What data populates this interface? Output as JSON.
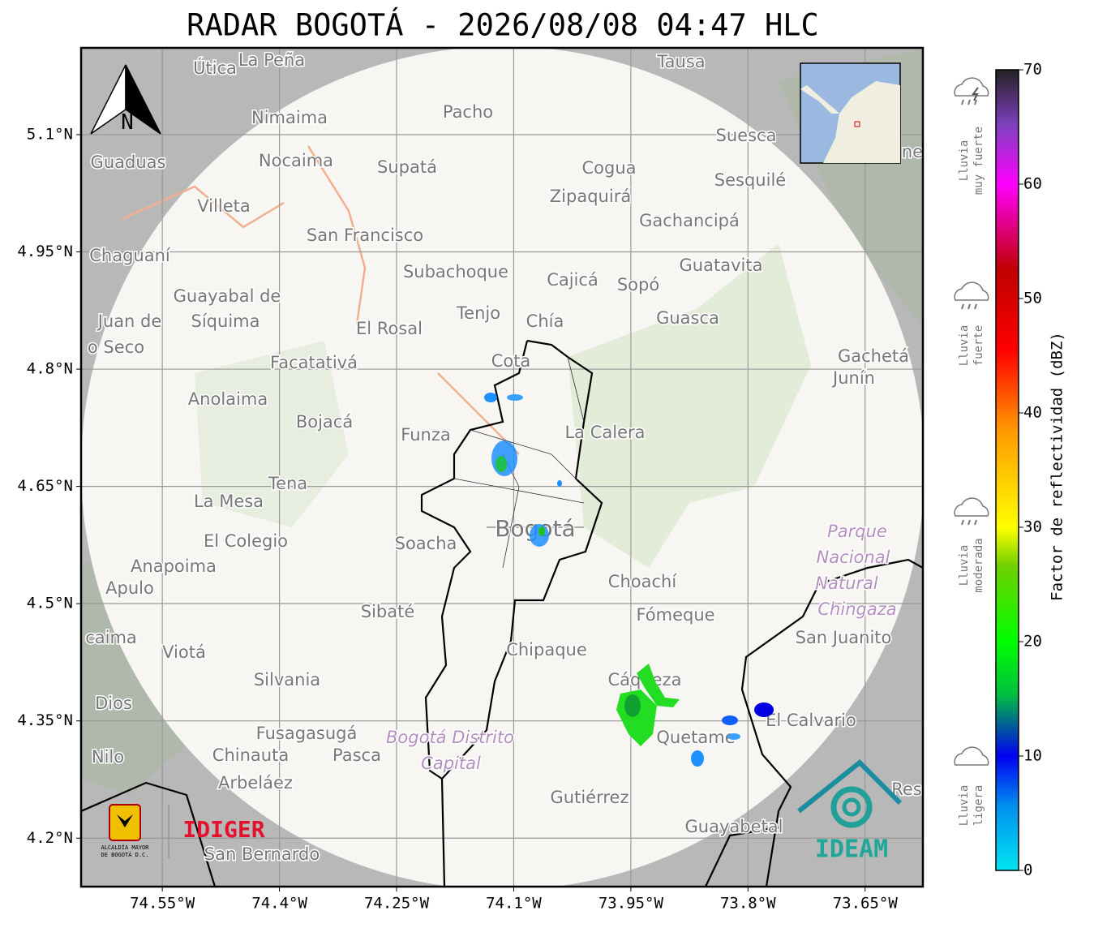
{
  "title": "RADAR BOGOTÁ - 2026/08/08 04:47 HLC",
  "map": {
    "lon_lim": [
      -74.654,
      -73.576
    ],
    "lat_lim": [
      4.138,
      5.211
    ],
    "lat_ticks": [
      {
        "value": 5.1,
        "label": "5.1°N"
      },
      {
        "value": 4.95,
        "label": "4.95°N"
      },
      {
        "value": 4.8,
        "label": "4.8°N"
      },
      {
        "value": 4.65,
        "label": "4.65°N"
      },
      {
        "value": 4.5,
        "label": "4.5°N"
      },
      {
        "value": 4.35,
        "label": "4.35°N"
      },
      {
        "value": 4.2,
        "label": "4.2°N"
      }
    ],
    "lon_ticks": [
      {
        "value": -74.55,
        "label": "74.55°W"
      },
      {
        "value": -74.4,
        "label": "74.4°W"
      },
      {
        "value": -74.25,
        "label": "74.25°W"
      },
      {
        "value": -74.1,
        "label": "74.1°W"
      },
      {
        "value": -73.95,
        "label": "73.95°W"
      },
      {
        "value": -73.8,
        "label": "73.8°W"
      },
      {
        "value": -73.65,
        "label": "73.65°W"
      }
    ],
    "north": "N",
    "places": [
      "Útica",
      "La Peña",
      "Tausa",
      "Pacho",
      "Nimaima",
      "Guaduas",
      "Nocaima",
      "Supatá",
      "Cogua",
      "Suesca",
      "Sesquilé",
      "Zipaquirá",
      "Villeta",
      "Gachancipá",
      "San Francisco",
      "Chaguaní",
      "Guatavita",
      "Subachoque",
      "Cajicá",
      "Sopó",
      "Guayabal de",
      "Síquima",
      "Juan de",
      "Tenjo",
      "Chía",
      "Guasca",
      "El Rosal",
      "o Seco",
      "Facatativá",
      "Cota",
      "Gachetá",
      "Junín",
      "Anolaima",
      "Bojacá",
      "Funza",
      "La Calera",
      "Tena",
      "La Mesa",
      "Bogotá",
      "Parque",
      "Nacional",
      "Natural",
      "Chingaza",
      "El Colegio",
      "Soacha",
      "Anapoima",
      "Apulo",
      "Choachí",
      "Sibaté",
      "Fómeque",
      "San Juanito",
      "caima",
      "Viotá",
      "Chipaque",
      "Silvania",
      "Cáqueza",
      "Dios",
      "El Calvario",
      "Fusagasugá",
      "Quetame",
      "Bogotá Distrito",
      "Capital",
      "Nilo",
      "Chinauta",
      "Pasca",
      "Arbeláez",
      "Gutiérrez",
      "Res",
      "Guayabetal",
      "San Bernardo",
      "ne"
    ],
    "logos": {
      "alcaldia": [
        "ALCALDÍA MAYOR",
        "DE BOGOTÁ D.C."
      ],
      "idiger": "IDIGER",
      "ideam": "IDEAM"
    }
  },
  "colorbar": {
    "label": "Factor de reflectividad (dBZ)",
    "limits": [
      0,
      70
    ],
    "ticks": [
      0,
      10,
      20,
      30,
      40,
      50,
      60,
      70
    ],
    "categories": [
      [
        "Lluvia",
        "muy fuerte"
      ],
      [
        "Lluvia",
        "fuerte"
      ],
      [
        "Lluvia",
        "moderada"
      ],
      [
        "Lluvia",
        "ligera"
      ]
    ]
  }
}
